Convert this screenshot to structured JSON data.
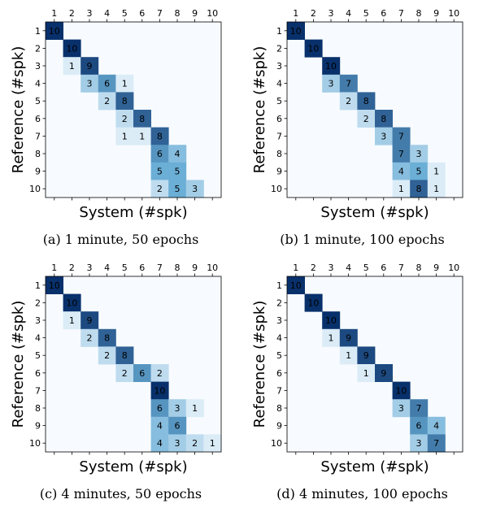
{
  "colormap": {
    "name": "Blues",
    "low": "#f7fbff",
    "high": "#08306b"
  },
  "chart_data": [
    {
      "type": "heatmap",
      "caption": "(a) 1 minute, 50 epochs",
      "xlabel": "System (#spk)",
      "ylabel": "Reference (#spk)",
      "x_ticks": [
        "1",
        "2",
        "3",
        "4",
        "5",
        "6",
        "7",
        "8",
        "9",
        "10"
      ],
      "y_ticks": [
        "1",
        "2",
        "3",
        "4",
        "5",
        "6",
        "7",
        "8",
        "9",
        "10"
      ],
      "x_tick_position": "top",
      "vmax": 10,
      "cells": [
        {
          "ref": 1,
          "sys": 1,
          "value": 10
        },
        {
          "ref": 2,
          "sys": 2,
          "value": 10
        },
        {
          "ref": 3,
          "sys": 2,
          "value": 1
        },
        {
          "ref": 3,
          "sys": 3,
          "value": 9
        },
        {
          "ref": 4,
          "sys": 3,
          "value": 3
        },
        {
          "ref": 4,
          "sys": 4,
          "value": 6
        },
        {
          "ref": 4,
          "sys": 5,
          "value": 1
        },
        {
          "ref": 5,
          "sys": 4,
          "value": 2
        },
        {
          "ref": 5,
          "sys": 5,
          "value": 8
        },
        {
          "ref": 6,
          "sys": 5,
          "value": 2
        },
        {
          "ref": 6,
          "sys": 6,
          "value": 8
        },
        {
          "ref": 7,
          "sys": 5,
          "value": 1
        },
        {
          "ref": 7,
          "sys": 6,
          "value": 1
        },
        {
          "ref": 7,
          "sys": 7,
          "value": 8
        },
        {
          "ref": 8,
          "sys": 7,
          "value": 6
        },
        {
          "ref": 8,
          "sys": 8,
          "value": 4
        },
        {
          "ref": 9,
          "sys": 7,
          "value": 5
        },
        {
          "ref": 9,
          "sys": 8,
          "value": 5
        },
        {
          "ref": 10,
          "sys": 7,
          "value": 2
        },
        {
          "ref": 10,
          "sys": 8,
          "value": 5
        },
        {
          "ref": 10,
          "sys": 9,
          "value": 3
        }
      ]
    },
    {
      "type": "heatmap",
      "caption": "(b) 1 minute, 100 epochs",
      "xlabel": "System (#spk)",
      "ylabel": "Reference (#spk)",
      "x_ticks": [
        "1",
        "2",
        "3",
        "4",
        "5",
        "6",
        "7",
        "8",
        "9",
        "10"
      ],
      "y_ticks": [
        "1",
        "2",
        "3",
        "4",
        "5",
        "6",
        "7",
        "8",
        "9",
        "10"
      ],
      "x_tick_position": "top",
      "vmax": 10,
      "cells": [
        {
          "ref": 1,
          "sys": 1,
          "value": 10
        },
        {
          "ref": 2,
          "sys": 2,
          "value": 10
        },
        {
          "ref": 3,
          "sys": 3,
          "value": 10
        },
        {
          "ref": 4,
          "sys": 3,
          "value": 3
        },
        {
          "ref": 4,
          "sys": 4,
          "value": 7
        },
        {
          "ref": 5,
          "sys": 4,
          "value": 2
        },
        {
          "ref": 5,
          "sys": 5,
          "value": 8
        },
        {
          "ref": 6,
          "sys": 5,
          "value": 2
        },
        {
          "ref": 6,
          "sys": 6,
          "value": 8
        },
        {
          "ref": 7,
          "sys": 6,
          "value": 3
        },
        {
          "ref": 7,
          "sys": 7,
          "value": 7
        },
        {
          "ref": 8,
          "sys": 7,
          "value": 7
        },
        {
          "ref": 8,
          "sys": 8,
          "value": 3
        },
        {
          "ref": 9,
          "sys": 7,
          "value": 4
        },
        {
          "ref": 9,
          "sys": 8,
          "value": 5
        },
        {
          "ref": 9,
          "sys": 9,
          "value": 1
        },
        {
          "ref": 10,
          "sys": 7,
          "value": 1
        },
        {
          "ref": 10,
          "sys": 8,
          "value": 8
        },
        {
          "ref": 10,
          "sys": 9,
          "value": 1
        }
      ]
    },
    {
      "type": "heatmap",
      "caption": "(c) 4 minutes, 50 epochs",
      "xlabel": "System (#spk)",
      "ylabel": "Reference (#spk)",
      "x_ticks": [
        "1",
        "2",
        "3",
        "4",
        "5",
        "6",
        "7",
        "8",
        "9",
        "10"
      ],
      "y_ticks": [
        "1",
        "2",
        "3",
        "4",
        "5",
        "6",
        "7",
        "8",
        "9",
        "10"
      ],
      "x_tick_position": "top",
      "vmax": 10,
      "cells": [
        {
          "ref": 1,
          "sys": 1,
          "value": 10
        },
        {
          "ref": 2,
          "sys": 2,
          "value": 10
        },
        {
          "ref": 3,
          "sys": 2,
          "value": 1
        },
        {
          "ref": 3,
          "sys": 3,
          "value": 9
        },
        {
          "ref": 4,
          "sys": 3,
          "value": 2
        },
        {
          "ref": 4,
          "sys": 4,
          "value": 8
        },
        {
          "ref": 5,
          "sys": 4,
          "value": 2
        },
        {
          "ref": 5,
          "sys": 5,
          "value": 8
        },
        {
          "ref": 6,
          "sys": 5,
          "value": 2
        },
        {
          "ref": 6,
          "sys": 6,
          "value": 6
        },
        {
          "ref": 6,
          "sys": 7,
          "value": 2
        },
        {
          "ref": 7,
          "sys": 7,
          "value": 10
        },
        {
          "ref": 8,
          "sys": 7,
          "value": 6
        },
        {
          "ref": 8,
          "sys": 8,
          "value": 3
        },
        {
          "ref": 8,
          "sys": 9,
          "value": 1
        },
        {
          "ref": 9,
          "sys": 7,
          "value": 4
        },
        {
          "ref": 9,
          "sys": 8,
          "value": 6
        },
        {
          "ref": 10,
          "sys": 7,
          "value": 4
        },
        {
          "ref": 10,
          "sys": 8,
          "value": 3
        },
        {
          "ref": 10,
          "sys": 9,
          "value": 2
        },
        {
          "ref": 10,
          "sys": 10,
          "value": 1
        }
      ]
    },
    {
      "type": "heatmap",
      "caption": "(d) 4 minutes, 100 epochs",
      "xlabel": "System (#spk)",
      "ylabel": "Reference (#spk)",
      "x_ticks": [
        "1",
        "2",
        "3",
        "4",
        "5",
        "6",
        "7",
        "8",
        "9",
        "10"
      ],
      "y_ticks": [
        "1",
        "2",
        "3",
        "4",
        "5",
        "6",
        "7",
        "8",
        "9",
        "10"
      ],
      "x_tick_position": "top",
      "vmax": 10,
      "cells": [
        {
          "ref": 1,
          "sys": 1,
          "value": 10
        },
        {
          "ref": 2,
          "sys": 2,
          "value": 10
        },
        {
          "ref": 3,
          "sys": 3,
          "value": 10
        },
        {
          "ref": 4,
          "sys": 3,
          "value": 1
        },
        {
          "ref": 4,
          "sys": 4,
          "value": 9
        },
        {
          "ref": 5,
          "sys": 4,
          "value": 1
        },
        {
          "ref": 5,
          "sys": 5,
          "value": 9
        },
        {
          "ref": 6,
          "sys": 5,
          "value": 1
        },
        {
          "ref": 6,
          "sys": 6,
          "value": 9
        },
        {
          "ref": 7,
          "sys": 7,
          "value": 10
        },
        {
          "ref": 8,
          "sys": 7,
          "value": 3
        },
        {
          "ref": 8,
          "sys": 8,
          "value": 7
        },
        {
          "ref": 9,
          "sys": 8,
          "value": 6
        },
        {
          "ref": 9,
          "sys": 9,
          "value": 4
        },
        {
          "ref": 10,
          "sys": 8,
          "value": 3
        },
        {
          "ref": 10,
          "sys": 9,
          "value": 7
        }
      ]
    }
  ]
}
